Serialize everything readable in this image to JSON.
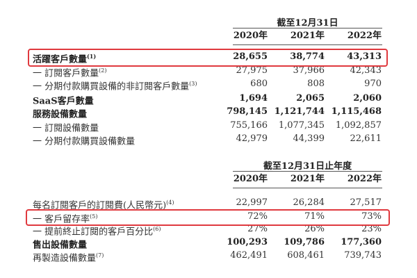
{
  "section1": {
    "header": "截至12月31日",
    "years": [
      "2020年",
      "2021年",
      "2022年"
    ],
    "rows": [
      {
        "label": "活躍客戶數量",
        "note": "(1)",
        "values": [
          "28,655",
          "38,774",
          "43,313"
        ],
        "bold": true,
        "highlighted": true
      },
      {
        "label": "一 訂閱客戶數量",
        "note": "(2)",
        "values": [
          "27,975",
          "37,966",
          "42,343"
        ],
        "bold": false
      },
      {
        "label": "一 分期付款購買設備的非訂閱客戶數量",
        "note": "(3)",
        "values": [
          "680",
          "808",
          "970"
        ],
        "bold": false
      },
      {
        "label": "SaaS客戶數量",
        "note": "",
        "values": [
          "1,694",
          "2,065",
          "2,060"
        ],
        "bold": true
      },
      {
        "label": "服務設備數量",
        "note": "",
        "values": [
          "798,145",
          "1,121,744",
          "1,115,468"
        ],
        "bold": true
      },
      {
        "label": "一 訂閱設備數量",
        "note": "",
        "values": [
          "755,166",
          "1,077,345",
          "1,092,857"
        ],
        "bold": false
      },
      {
        "label": "一 分期付款購買設備數量",
        "note": "",
        "values": [
          "42,979",
          "44,399",
          "22,611"
        ],
        "bold": false
      }
    ]
  },
  "section2": {
    "header": "截至12月31日止年度",
    "years": [
      "2020年",
      "2021年",
      "2022年"
    ],
    "rows": [
      {
        "label": "每名訂閱客戶的訂閱費(人民幣元)",
        "note": "(4)",
        "values": [
          "22,997",
          "26,284",
          "27,517"
        ],
        "bold": false
      },
      {
        "label": "一 客戶留存率",
        "note": "(5)",
        "values": [
          "72%",
          "71%",
          "73%"
        ],
        "bold": false,
        "highlighted": true
      },
      {
        "label": "一 提前終止訂閱的客戶百分比",
        "note": "(6)",
        "values": [
          "27%",
          "26%",
          "23%"
        ],
        "bold": false
      },
      {
        "label": "售出設備數量",
        "note": "",
        "values": [
          "100,293",
          "109,786",
          "177,360"
        ],
        "bold": true
      },
      {
        "label": "再製造設備數量",
        "note": "(7)",
        "values": [
          "462,491",
          "608,461",
          "739,743"
        ],
        "bold": false
      }
    ]
  },
  "colors": {
    "highlight_border": "#e0393e"
  }
}
